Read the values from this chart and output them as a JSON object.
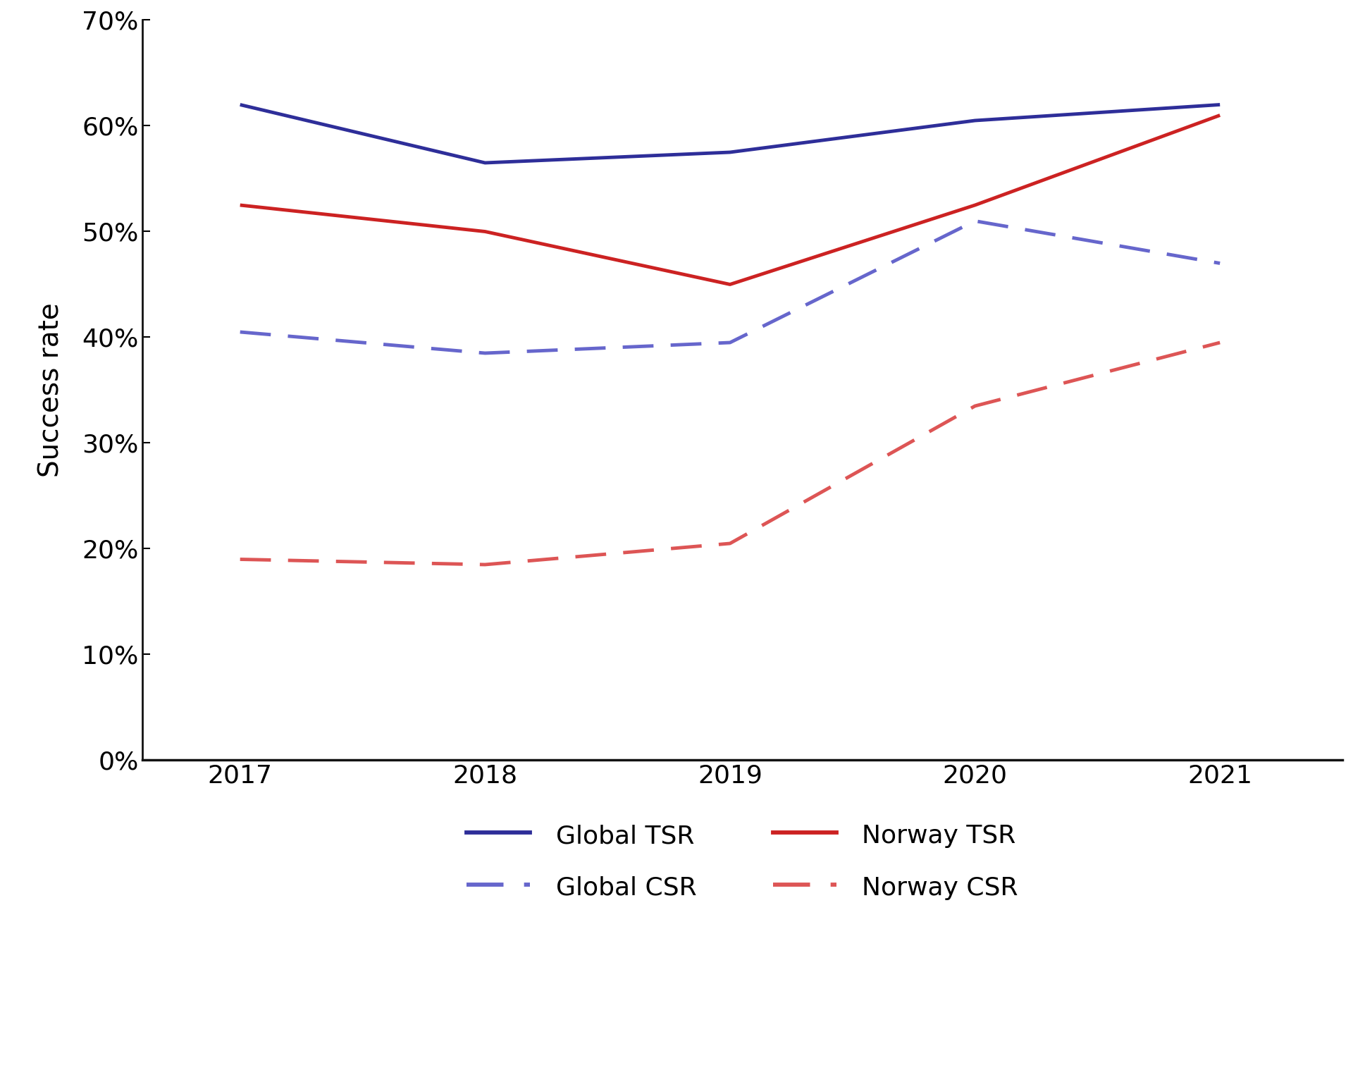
{
  "years": [
    2017,
    2018,
    2019,
    2020,
    2021
  ],
  "global_tsr": [
    0.62,
    0.565,
    0.575,
    0.605,
    0.62
  ],
  "global_csr": [
    0.405,
    0.385,
    0.395,
    0.51,
    0.47
  ],
  "norway_tsr": [
    0.525,
    0.5,
    0.45,
    0.525,
    0.61
  ],
  "norway_csr": [
    0.19,
    0.185,
    0.205,
    0.335,
    0.395
  ],
  "global_tsr_color": "#2e2e99",
  "global_csr_color": "#6666cc",
  "norway_tsr_color": "#cc2222",
  "norway_csr_color": "#dd5555",
  "ylabel": "Success rate",
  "ylim": [
    0,
    0.7
  ],
  "yticks": [
    0.0,
    0.1,
    0.2,
    0.3,
    0.4,
    0.5,
    0.6,
    0.7
  ],
  "background_color": "#ffffff",
  "linewidth": 3.5,
  "fontsize_ticks": 26,
  "fontsize_ylabel": 28,
  "fontsize_legend": 26
}
